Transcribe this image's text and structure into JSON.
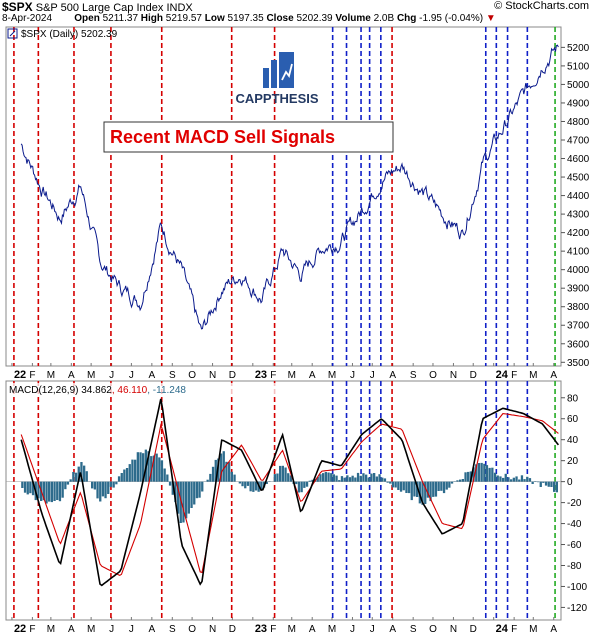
{
  "header": {
    "symbol": "$SPX",
    "name": "S&P 500 Large Cap Index",
    "exchange": "INDX",
    "brand": "© StockCharts.com",
    "date": "8-Apr-2024",
    "open_label": "Open",
    "open": "5211.37",
    "high_label": "High",
    "high": "5219.57",
    "low_label": "Low",
    "low": "5197.35",
    "close_label": "Close",
    "close": "5202.39",
    "volume_label": "Volume",
    "volume": "2.0B",
    "chg_label": "Chg",
    "chg": "-1.95 (-0.04%)"
  },
  "logo": {
    "text": "CAPPTHESIS"
  },
  "annotation": {
    "text": "Recent MACD Sell Signals"
  },
  "colors": {
    "price": "#0a1a8c",
    "macd_line": "#000000",
    "signal_line": "#d40000",
    "histogram": "#2d6b8c",
    "red_marker": "#d40000",
    "blue_marker": "#1020c8",
    "green_marker": "#22aa22",
    "logo_blue": "#2a5eb0",
    "logo_text": "#243a63",
    "annotation_text": "#e00000"
  },
  "chart_data": [
    {
      "type": "line",
      "panel": "price",
      "legend_label": "$SPX (Daily) 5202.39",
      "ylim": [
        3480,
        5310
      ],
      "y_ticks": [
        3500,
        3600,
        3700,
        3800,
        3900,
        4000,
        4100,
        4200,
        4300,
        4400,
        4500,
        4600,
        4700,
        4800,
        4900,
        5000,
        5100,
        5200
      ],
      "x": [
        "2022-01",
        "2022-02",
        "2022-03",
        "2022-04",
        "2022-05",
        "2022-06",
        "2022-07",
        "2022-08",
        "2022-09",
        "2022-10",
        "2022-11",
        "2022-12",
        "2023-01",
        "2023-02",
        "2023-03",
        "2023-04",
        "2023-05",
        "2023-06",
        "2023-07",
        "2023-08",
        "2023-09",
        "2023-10",
        "2023-11",
        "2023-12",
        "2024-01",
        "2024-02",
        "2024-03",
        "2024-04"
      ],
      "series": [
        {
          "values": [
            4680,
            4440,
            4280,
            4450,
            4040,
            3900,
            3830,
            4240,
            4000,
            3650,
            3900,
            3980,
            3840,
            4100,
            3970,
            4120,
            4160,
            4320,
            4490,
            4560,
            4420,
            4300,
            4200,
            4570,
            4760,
            4940,
            5120,
            5202
          ]
        }
      ],
      "x_tick_labels": [
        "22",
        "F",
        "M",
        "A",
        "M",
        "J",
        "J",
        "A",
        "S",
        "O",
        "N",
        "D",
        "23",
        "F",
        "M",
        "A",
        "M",
        "J",
        "J",
        "A",
        "S",
        "O",
        "N",
        "D",
        "24",
        "F",
        "M",
        "A"
      ],
      "signal_markers": {
        "sell_red": [
          "2022-01-04",
          "2022-02-10",
          "2022-04-05",
          "2022-05-31",
          "2022-08-16",
          "2022-11-30",
          "2023-02-03",
          "2023-07-31"
        ],
        "sell_blue": [
          "2023-05-02",
          "2023-05-23",
          "2023-06-14",
          "2023-06-27",
          "2023-07-14",
          "2023-12-20",
          "2024-01-05",
          "2024-01-22",
          "2024-02-21"
        ],
        "latest_green": [
          "2024-04-03"
        ]
      }
    },
    {
      "type": "line",
      "panel": "macd",
      "legend": [
        "MACD(12,26,9) 34.862",
        "46.110",
        "-11.248"
      ],
      "ylim": [
        -132,
        96
      ],
      "y_ticks": [
        80,
        60,
        40,
        20,
        0,
        -20,
        -40,
        -60,
        -80,
        -100,
        -120
      ],
      "x": [
        "2022-01",
        "2022-02",
        "2022-03",
        "2022-04",
        "2022-05",
        "2022-06",
        "2022-07",
        "2022-08",
        "2022-09",
        "2022-10",
        "2022-11",
        "2022-12",
        "2023-01",
        "2023-02",
        "2023-03",
        "2023-04",
        "2023-05",
        "2023-06",
        "2023-07",
        "2023-08",
        "2023-09",
        "2023-10",
        "2023-11",
        "2023-12",
        "2024-01",
        "2024-02",
        "2024-03",
        "2024-04"
      ],
      "series": [
        {
          "name": "MACD(12,26,9)",
          "values": [
            40,
            -30,
            -80,
            10,
            -100,
            -85,
            -10,
            80,
            -60,
            -100,
            40,
            30,
            -10,
            45,
            -30,
            20,
            15,
            45,
            60,
            40,
            -20,
            -50,
            -40,
            60,
            70,
            65,
            55,
            35
          ]
        },
        {
          "name": "Signal",
          "values": [
            45,
            -10,
            -60,
            -10,
            -80,
            -90,
            -40,
            55,
            -20,
            -90,
            10,
            35,
            0,
            30,
            -20,
            10,
            12,
            38,
            55,
            50,
            0,
            -40,
            -45,
            40,
            65,
            62,
            58,
            46
          ]
        }
      ],
      "histogram": [
        -5,
        -20,
        -20,
        20,
        -20,
        5,
        30,
        25,
        -40,
        -10,
        30,
        -5,
        -10,
        15,
        -10,
        10,
        3,
        7,
        5,
        -10,
        -20,
        -10,
        5,
        20,
        5,
        3,
        -3,
        -11
      ]
    }
  ]
}
